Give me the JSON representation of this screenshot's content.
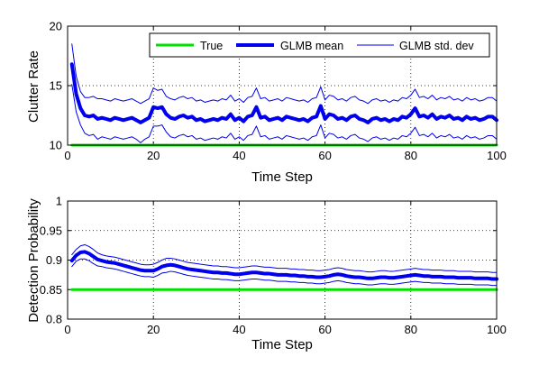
{
  "colors": {
    "true_line": "#00e000",
    "mean_line": "#0000ee",
    "std_line": "#0000ee"
  },
  "chart_data": [
    {
      "type": "line",
      "xlabel": "Time Step",
      "ylabel": "Clutter Rate",
      "xlim": [
        0,
        100
      ],
      "ylim": [
        10,
        20
      ],
      "xticks": [
        "0",
        "20",
        "40",
        "60",
        "80",
        "100"
      ],
      "yticks": [
        "10",
        "15",
        "20"
      ],
      "grid": true,
      "legend_position": "top-right",
      "legend": [
        "True",
        "GLMB mean",
        "GLMB std. dev"
      ],
      "x": [
        1,
        2,
        3,
        4,
        5,
        6,
        7,
        8,
        9,
        10,
        11,
        12,
        13,
        14,
        15,
        16,
        17,
        18,
        19,
        20,
        21,
        22,
        23,
        24,
        25,
        26,
        27,
        28,
        29,
        30,
        31,
        32,
        33,
        34,
        35,
        36,
        37,
        38,
        39,
        40,
        41,
        42,
        43,
        44,
        45,
        46,
        47,
        48,
        49,
        50,
        51,
        52,
        53,
        54,
        55,
        56,
        57,
        58,
        59,
        60,
        61,
        62,
        63,
        64,
        65,
        66,
        67,
        68,
        69,
        70,
        71,
        72,
        73,
        74,
        75,
        76,
        77,
        78,
        79,
        80,
        81,
        82,
        83,
        84,
        85,
        86,
        87,
        88,
        89,
        90,
        91,
        92,
        93,
        94,
        95,
        96,
        97,
        98,
        99,
        100
      ],
      "series": [
        {
          "name": "True",
          "role": "true",
          "values": [
            10,
            10,
            10,
            10,
            10,
            10,
            10,
            10,
            10,
            10,
            10,
            10,
            10,
            10,
            10,
            10,
            10,
            10,
            10,
            10,
            10,
            10,
            10,
            10,
            10,
            10,
            10,
            10,
            10,
            10,
            10,
            10,
            10,
            10,
            10,
            10,
            10,
            10,
            10,
            10,
            10,
            10,
            10,
            10,
            10,
            10,
            10,
            10,
            10,
            10,
            10,
            10,
            10,
            10,
            10,
            10,
            10,
            10,
            10,
            10,
            10,
            10,
            10,
            10,
            10,
            10,
            10,
            10,
            10,
            10,
            10,
            10,
            10,
            10,
            10,
            10,
            10,
            10,
            10,
            10,
            10,
            10,
            10,
            10,
            10,
            10,
            10,
            10,
            10,
            10,
            10,
            10,
            10,
            10,
            10,
            10,
            10,
            10,
            10,
            10
          ]
        },
        {
          "name": "GLMB mean",
          "role": "mean",
          "values": [
            16.8,
            14.3,
            13.1,
            12.5,
            12.4,
            12.5,
            12.2,
            12.3,
            12.2,
            12.1,
            12.3,
            12.2,
            12.1,
            12.2,
            12.3,
            12.1,
            11.9,
            12.1,
            12.3,
            13.2,
            13.1,
            13.2,
            12.6,
            12.3,
            12.2,
            12.4,
            12.5,
            12.3,
            12.4,
            12.1,
            12.2,
            12.0,
            12.1,
            12.2,
            12.1,
            12.3,
            12.2,
            12.6,
            12.1,
            12.3,
            12.0,
            12.4,
            12.5,
            13.2,
            12.3,
            12.4,
            12.1,
            12.2,
            12.3,
            12.1,
            12.4,
            12.3,
            12.2,
            12.1,
            12.2,
            12.0,
            12.3,
            12.4,
            13.3,
            12.2,
            12.6,
            12.5,
            12.2,
            12.3,
            12.1,
            12.4,
            12.5,
            12.2,
            12.1,
            11.9,
            12.2,
            12.3,
            12.1,
            12.2,
            12.0,
            12.2,
            12.1,
            12.4,
            12.3,
            12.6,
            13.1,
            12.4,
            12.5,
            12.3,
            12.6,
            12.2,
            12.4,
            12.3,
            12.5,
            12.2,
            12.3,
            12.1,
            12.4,
            12.2,
            12.3,
            12.1,
            12.2,
            12.4,
            12.4,
            12.1
          ]
        },
        {
          "name": "GLMB std. dev",
          "role": "std_upper",
          "values": [
            18.5,
            15.8,
            14.5,
            14.0,
            14.0,
            14.1,
            13.9,
            13.9,
            13.8,
            13.7,
            13.9,
            13.8,
            13.7,
            13.8,
            13.9,
            13.7,
            13.5,
            13.7,
            13.9,
            14.8,
            14.6,
            14.7,
            14.1,
            13.9,
            13.8,
            14.0,
            14.1,
            13.9,
            14.0,
            13.7,
            13.8,
            13.6,
            13.7,
            13.8,
            13.7,
            13.9,
            13.8,
            14.2,
            13.7,
            13.9,
            13.6,
            14.0,
            14.1,
            14.8,
            13.9,
            14.0,
            13.7,
            13.8,
            13.9,
            13.7,
            14.0,
            13.9,
            13.8,
            13.7,
            13.8,
            13.6,
            13.9,
            14.0,
            14.9,
            13.8,
            14.2,
            14.1,
            13.8,
            13.9,
            13.7,
            14.0,
            14.1,
            13.8,
            13.7,
            13.5,
            13.8,
            13.9,
            13.7,
            13.8,
            13.6,
            13.8,
            13.7,
            14.0,
            13.9,
            14.2,
            14.7,
            14.0,
            14.1,
            13.9,
            14.2,
            13.8,
            14.0,
            13.9,
            14.1,
            13.8,
            13.9,
            13.7,
            14.0,
            13.8,
            13.9,
            13.7,
            13.8,
            14.0,
            14.0,
            13.7
          ]
        },
        {
          "name": "GLMB std. dev",
          "role": "std_lower",
          "values": [
            15.1,
            12.8,
            11.7,
            11.0,
            10.8,
            10.9,
            10.5,
            10.7,
            10.6,
            10.5,
            10.7,
            10.6,
            10.5,
            10.6,
            10.7,
            10.5,
            10.2,
            10.5,
            10.7,
            11.6,
            11.6,
            11.7,
            11.1,
            10.7,
            10.6,
            10.8,
            10.9,
            10.7,
            10.8,
            10.5,
            10.6,
            10.4,
            10.5,
            10.6,
            10.5,
            10.7,
            10.6,
            11.0,
            10.5,
            10.7,
            10.4,
            10.8,
            10.9,
            11.6,
            10.7,
            10.8,
            10.5,
            10.6,
            10.7,
            10.5,
            10.8,
            10.7,
            10.6,
            10.5,
            10.6,
            10.4,
            10.7,
            10.8,
            11.7,
            10.6,
            11.0,
            10.9,
            10.6,
            10.7,
            10.5,
            10.8,
            10.9,
            10.6,
            10.5,
            10.3,
            10.6,
            10.7,
            10.5,
            10.6,
            10.4,
            10.6,
            10.5,
            10.8,
            10.7,
            11.0,
            11.5,
            10.8,
            10.9,
            10.7,
            11.0,
            10.6,
            10.8,
            10.7,
            10.9,
            10.6,
            10.7,
            10.5,
            10.8,
            10.6,
            10.7,
            10.5,
            10.6,
            10.8,
            10.8,
            10.5
          ]
        }
      ]
    },
    {
      "type": "line",
      "xlabel": "Time Step",
      "ylabel": "Detection Probability",
      "xlim": [
        0,
        100
      ],
      "ylim": [
        0.8,
        1
      ],
      "xticks": [
        "0",
        "20",
        "40",
        "60",
        "80",
        "100"
      ],
      "yticks": [
        "0.8",
        "0.85",
        "0.9",
        "0.95",
        "1"
      ],
      "grid": true,
      "x": [
        1,
        2,
        3,
        4,
        5,
        6,
        7,
        8,
        9,
        10,
        11,
        12,
        13,
        14,
        15,
        16,
        17,
        18,
        19,
        20,
        21,
        22,
        23,
        24,
        25,
        26,
        27,
        28,
        29,
        30,
        31,
        32,
        33,
        34,
        35,
        36,
        37,
        38,
        39,
        40,
        41,
        42,
        43,
        44,
        45,
        46,
        47,
        48,
        49,
        50,
        51,
        52,
        53,
        54,
        55,
        56,
        57,
        58,
        59,
        60,
        61,
        62,
        63,
        64,
        65,
        66,
        67,
        68,
        69,
        70,
        71,
        72,
        73,
        74,
        75,
        76,
        77,
        78,
        79,
        80,
        81,
        82,
        83,
        84,
        85,
        86,
        87,
        88,
        89,
        90,
        91,
        92,
        93,
        94,
        95,
        96,
        97,
        98,
        99,
        100
      ],
      "series": [
        {
          "name": "True",
          "role": "true",
          "values": [
            0.85,
            0.85,
            0.85,
            0.85,
            0.85,
            0.85,
            0.85,
            0.85,
            0.85,
            0.85,
            0.85,
            0.85,
            0.85,
            0.85,
            0.85,
            0.85,
            0.85,
            0.85,
            0.85,
            0.85,
            0.85,
            0.85,
            0.85,
            0.85,
            0.85,
            0.85,
            0.85,
            0.85,
            0.85,
            0.85,
            0.85,
            0.85,
            0.85,
            0.85,
            0.85,
            0.85,
            0.85,
            0.85,
            0.85,
            0.85,
            0.85,
            0.85,
            0.85,
            0.85,
            0.85,
            0.85,
            0.85,
            0.85,
            0.85,
            0.85,
            0.85,
            0.85,
            0.85,
            0.85,
            0.85,
            0.85,
            0.85,
            0.85,
            0.85,
            0.85,
            0.85,
            0.85,
            0.85,
            0.85,
            0.85,
            0.85,
            0.85,
            0.85,
            0.85,
            0.85,
            0.85,
            0.85,
            0.85,
            0.85,
            0.85,
            0.85,
            0.85,
            0.85,
            0.85,
            0.85,
            0.85,
            0.85,
            0.85,
            0.85,
            0.85,
            0.85,
            0.85,
            0.85,
            0.85,
            0.85,
            0.85,
            0.85,
            0.85,
            0.85,
            0.85,
            0.85,
            0.85,
            0.85,
            0.85,
            0.85
          ]
        },
        {
          "name": "GLMB mean",
          "role": "mean",
          "values": [
            0.899,
            0.908,
            0.913,
            0.914,
            0.911,
            0.906,
            0.901,
            0.899,
            0.897,
            0.896,
            0.895,
            0.893,
            0.891,
            0.889,
            0.887,
            0.885,
            0.883,
            0.882,
            0.882,
            0.882,
            0.885,
            0.889,
            0.891,
            0.892,
            0.891,
            0.889,
            0.887,
            0.885,
            0.884,
            0.883,
            0.882,
            0.881,
            0.88,
            0.879,
            0.879,
            0.878,
            0.878,
            0.877,
            0.876,
            0.876,
            0.877,
            0.878,
            0.879,
            0.879,
            0.878,
            0.877,
            0.877,
            0.876,
            0.875,
            0.875,
            0.875,
            0.874,
            0.874,
            0.873,
            0.873,
            0.872,
            0.872,
            0.871,
            0.871,
            0.872,
            0.873,
            0.875,
            0.876,
            0.875,
            0.873,
            0.872,
            0.871,
            0.871,
            0.87,
            0.869,
            0.869,
            0.87,
            0.871,
            0.871,
            0.87,
            0.87,
            0.871,
            0.872,
            0.873,
            0.874,
            0.875,
            0.874,
            0.873,
            0.873,
            0.872,
            0.872,
            0.872,
            0.871,
            0.871,
            0.871,
            0.87,
            0.87,
            0.87,
            0.87,
            0.869,
            0.869,
            0.869,
            0.869,
            0.868,
            0.868
          ]
        },
        {
          "name": "GLMB std. dev",
          "role": "std_upper",
          "values": [
            0.909,
            0.918,
            0.924,
            0.926,
            0.923,
            0.918,
            0.912,
            0.909,
            0.907,
            0.906,
            0.905,
            0.903,
            0.901,
            0.899,
            0.897,
            0.895,
            0.893,
            0.892,
            0.892,
            0.893,
            0.896,
            0.9,
            0.903,
            0.903,
            0.902,
            0.9,
            0.898,
            0.896,
            0.895,
            0.894,
            0.893,
            0.892,
            0.891,
            0.89,
            0.89,
            0.889,
            0.889,
            0.888,
            0.887,
            0.887,
            0.888,
            0.889,
            0.89,
            0.89,
            0.889,
            0.888,
            0.888,
            0.887,
            0.886,
            0.886,
            0.886,
            0.885,
            0.885,
            0.884,
            0.884,
            0.883,
            0.883,
            0.882,
            0.882,
            0.883,
            0.884,
            0.886,
            0.887,
            0.886,
            0.884,
            0.883,
            0.882,
            0.882,
            0.881,
            0.88,
            0.88,
            0.881,
            0.882,
            0.882,
            0.881,
            0.881,
            0.882,
            0.883,
            0.884,
            0.885,
            0.886,
            0.885,
            0.884,
            0.884,
            0.883,
            0.883,
            0.883,
            0.882,
            0.882,
            0.882,
            0.881,
            0.881,
            0.881,
            0.881,
            0.88,
            0.88,
            0.88,
            0.88,
            0.879,
            0.879
          ]
        },
        {
          "name": "GLMB std. dev",
          "role": "std_lower",
          "values": [
            0.889,
            0.898,
            0.902,
            0.902,
            0.899,
            0.894,
            0.89,
            0.889,
            0.887,
            0.886,
            0.885,
            0.883,
            0.881,
            0.879,
            0.877,
            0.875,
            0.873,
            0.872,
            0.872,
            0.871,
            0.874,
            0.878,
            0.879,
            0.881,
            0.88,
            0.878,
            0.876,
            0.874,
            0.873,
            0.872,
            0.871,
            0.87,
            0.869,
            0.868,
            0.868,
            0.867,
            0.867,
            0.866,
            0.865,
            0.865,
            0.866,
            0.867,
            0.868,
            0.868,
            0.867,
            0.866,
            0.866,
            0.865,
            0.864,
            0.864,
            0.864,
            0.863,
            0.863,
            0.862,
            0.862,
            0.861,
            0.861,
            0.86,
            0.86,
            0.861,
            0.862,
            0.864,
            0.865,
            0.864,
            0.862,
            0.861,
            0.86,
            0.86,
            0.859,
            0.858,
            0.858,
            0.859,
            0.86,
            0.86,
            0.859,
            0.859,
            0.86,
            0.861,
            0.862,
            0.863,
            0.864,
            0.863,
            0.862,
            0.862,
            0.861,
            0.861,
            0.861,
            0.86,
            0.86,
            0.86,
            0.859,
            0.859,
            0.859,
            0.859,
            0.858,
            0.858,
            0.858,
            0.858,
            0.857,
            0.857
          ]
        }
      ]
    }
  ]
}
